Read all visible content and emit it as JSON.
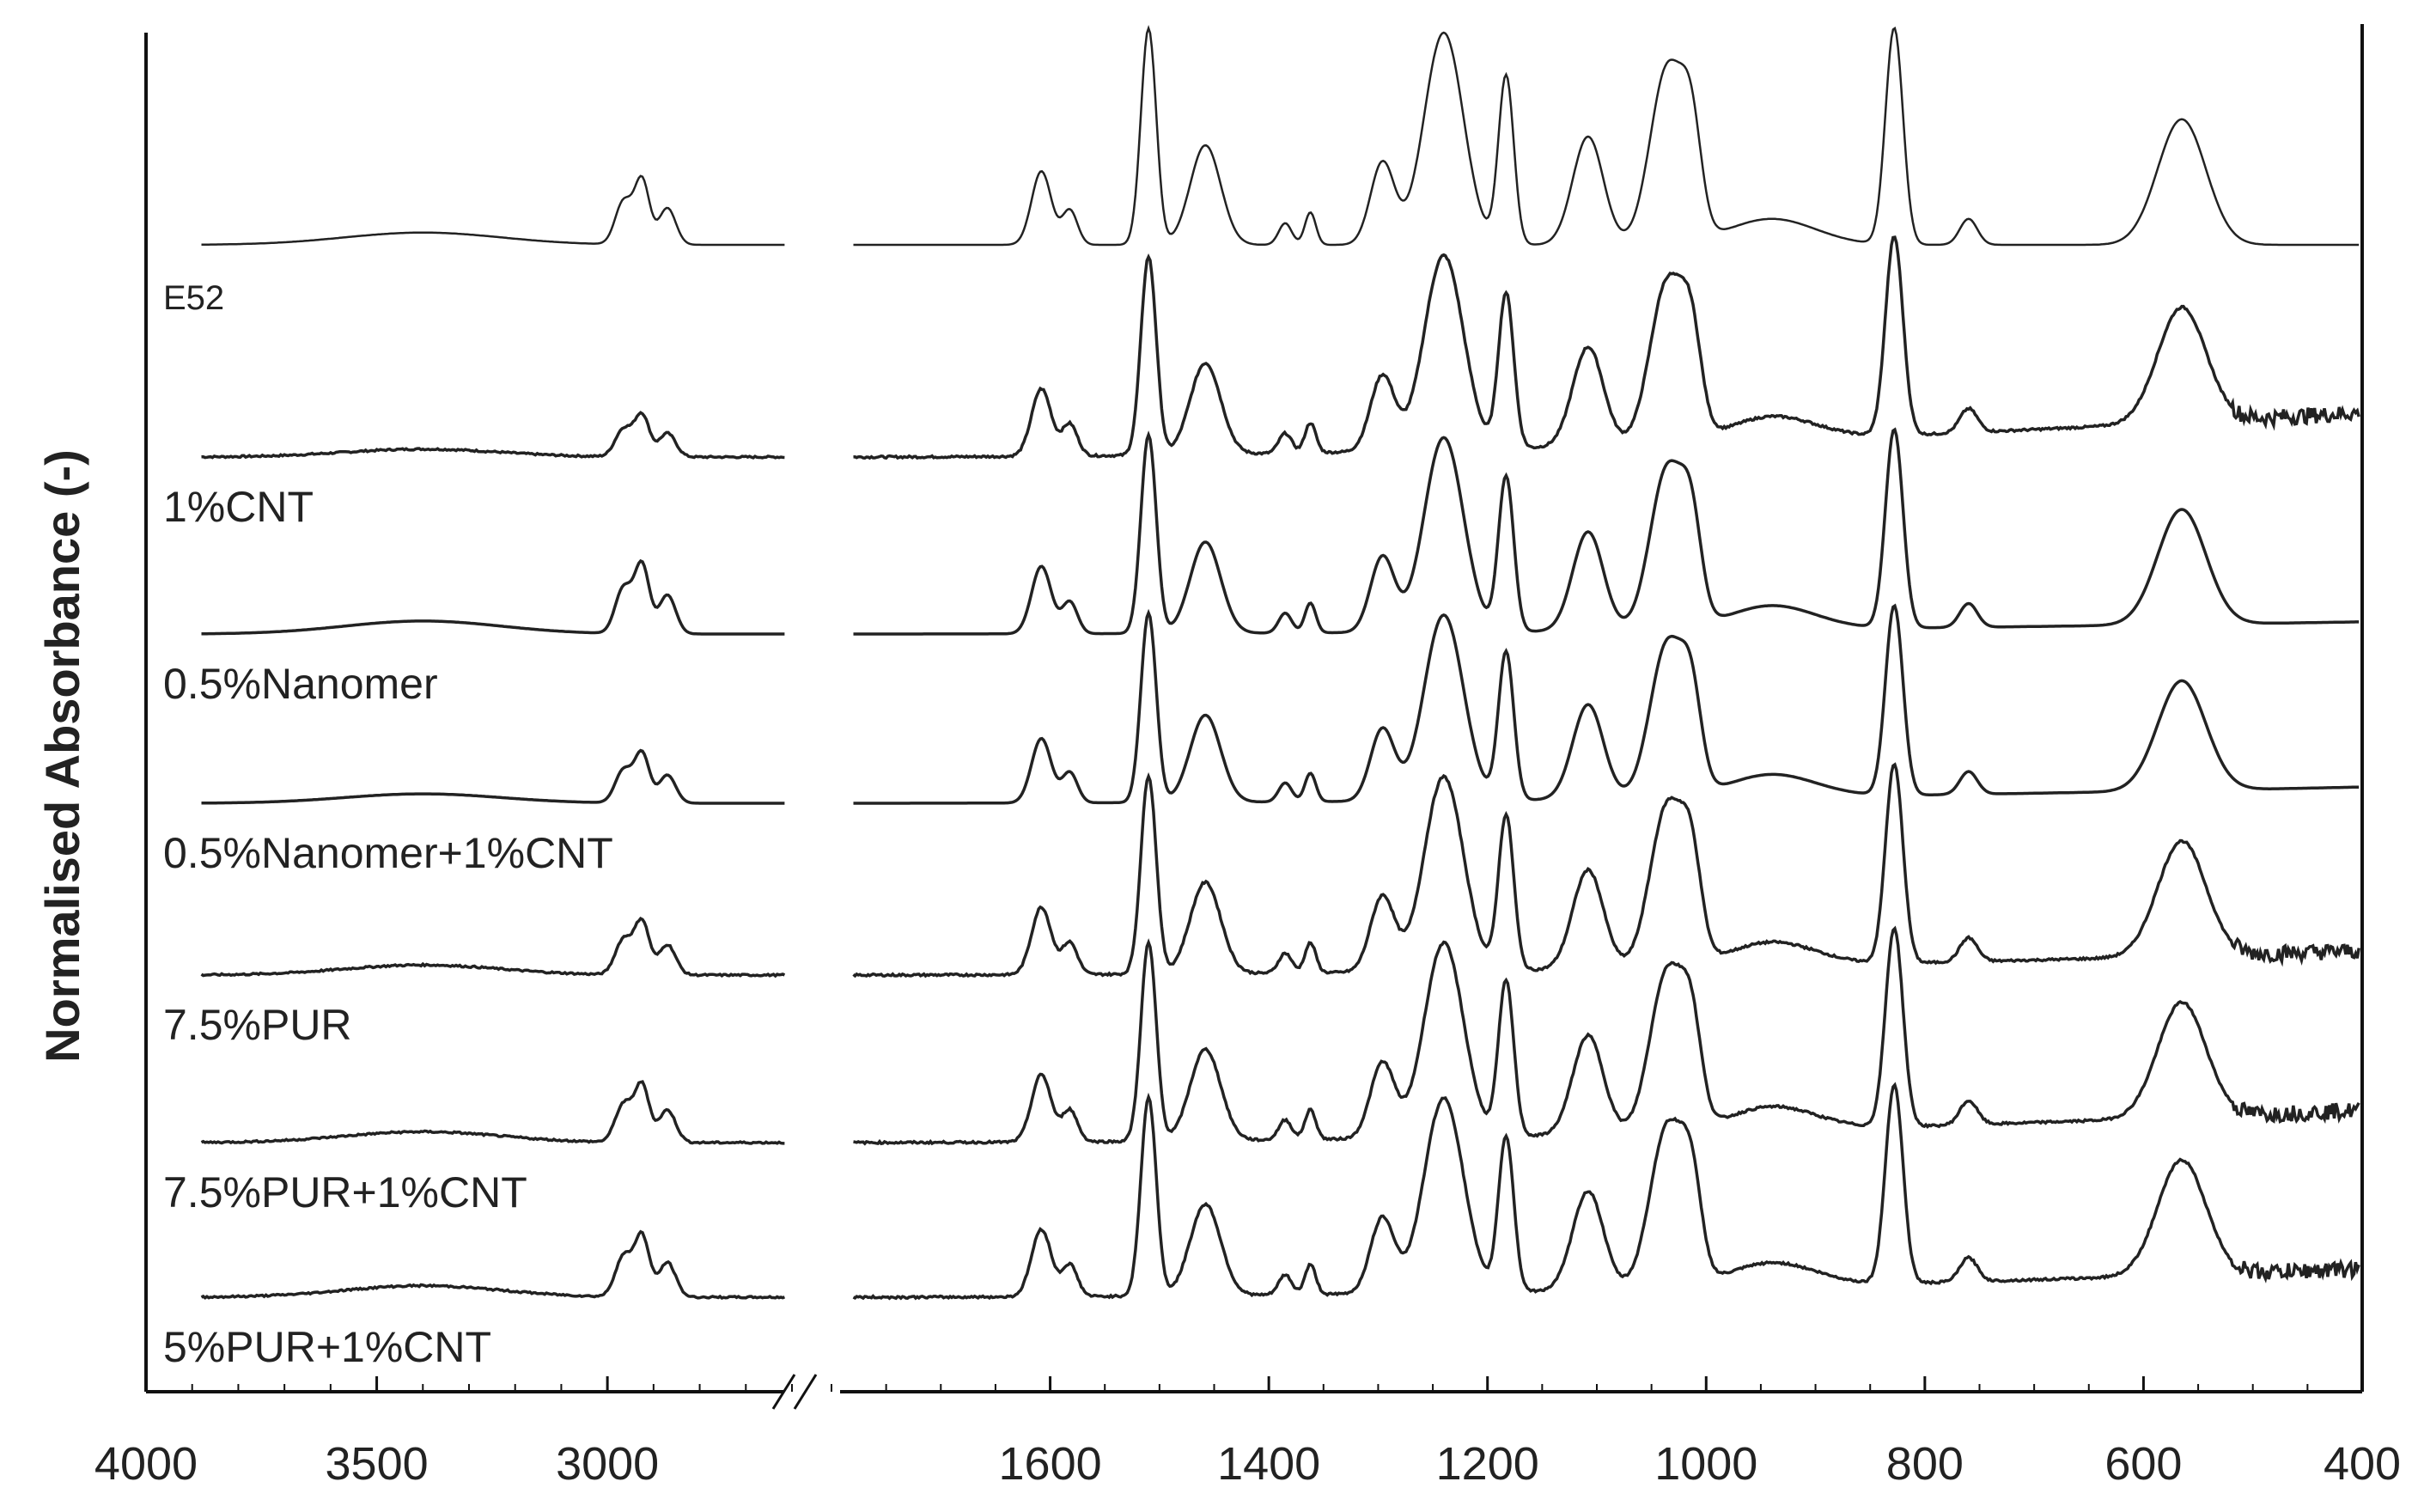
{
  "chart_data": {
    "type": "line",
    "title": "",
    "xlabel": "",
    "ylabel": "Normalised Absorbance (-)",
    "x_reversed": true,
    "axis_break": "//",
    "segments": [
      {
        "xlim": [
          4000,
          2600
        ],
        "ticks": [
          4000,
          3500,
          3000
        ]
      },
      {
        "xlim": [
          1800,
          400
        ],
        "ticks": [
          1600,
          1400,
          1200,
          1000,
          800,
          600,
          400
        ]
      }
    ],
    "left_peaks": [
      {
        "x": 3400,
        "w": 170,
        "h": 0.08
      },
      {
        "x": 2965,
        "w": 18,
        "h": 0.28
      },
      {
        "x": 2925,
        "w": 16,
        "h": 0.42
      },
      {
        "x": 2870,
        "w": 18,
        "h": 0.24
      }
    ],
    "right_peaks": [
      {
        "x": 1608,
        "w": 9,
        "h": 0.34
      },
      {
        "x": 1582,
        "w": 7,
        "h": 0.16
      },
      {
        "x": 1510,
        "w": 7,
        "h": 1.0
      },
      {
        "x": 1458,
        "w": 14,
        "h": 0.46
      },
      {
        "x": 1385,
        "w": 6,
        "h": 0.1
      },
      {
        "x": 1362,
        "w": 5,
        "h": 0.15
      },
      {
        "x": 1296,
        "w": 11,
        "h": 0.38
      },
      {
        "x": 1240,
        "w": 18,
        "h": 0.98
      },
      {
        "x": 1183,
        "w": 7,
        "h": 0.78
      },
      {
        "x": 1108,
        "w": 14,
        "h": 0.5
      },
      {
        "x": 1035,
        "w": 16,
        "h": 0.82
      },
      {
        "x": 1013,
        "w": 9,
        "h": 0.38
      },
      {
        "x": 940,
        "w": 40,
        "h": 0.12
      },
      {
        "x": 828,
        "w": 8,
        "h": 1.0
      },
      {
        "x": 760,
        "w": 8,
        "h": 0.12
      },
      {
        "x": 565,
        "w": 22,
        "h": 0.58
      }
    ],
    "series": [
      {
        "name": "E52",
        "left_scale": 0.85,
        "right_scale": 1.2,
        "right_tail": 0.0,
        "noise": 0
      },
      {
        "name": "1%CNT",
        "left_scale": 0.55,
        "right_scale": 1.1,
        "right_tail": 0.55,
        "noise": 1
      },
      {
        "name": "0.5%Nanomer",
        "left_scale": 0.9,
        "right_scale": 1.1,
        "right_tail": 0.15,
        "noise": 0
      },
      {
        "name": "0.5%Nanomer+1%CNT",
        "left_scale": 0.65,
        "right_scale": 1.05,
        "right_tail": 0.2,
        "noise": 0
      },
      {
        "name": "7.5%PUR",
        "left_scale": 0.7,
        "right_scale": 1.1,
        "right_tail": 0.3,
        "noise": 1
      },
      {
        "name": "7.5%PUR+1%CNT",
        "left_scale": 0.75,
        "right_scale": 1.1,
        "right_tail": 0.4,
        "noise": 1
      },
      {
        "name": "5%PUR+1%CNT",
        "left_scale": 0.8,
        "right_scale": 1.1,
        "right_tail": 0.35,
        "noise": 1
      }
    ]
  }
}
